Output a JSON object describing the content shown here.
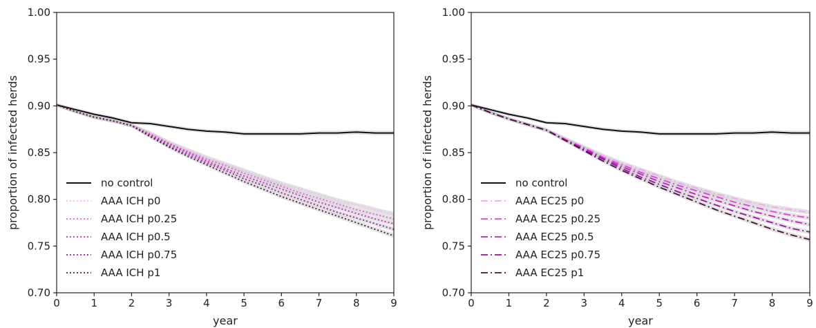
{
  "chart_data": [
    {
      "type": "line",
      "xlabel": "year",
      "ylabel": "proportion of infected herds",
      "xlim": [
        0,
        9
      ],
      "ylim": [
        0.7,
        1.0
      ],
      "xticks": [
        "0",
        "1",
        "2",
        "3",
        "4",
        "5",
        "6",
        "7",
        "8",
        "9"
      ],
      "yticks": [
        "0.70",
        "0.75",
        "0.80",
        "0.85",
        "0.90",
        "0.95",
        "1.00"
      ],
      "legend_position": "lower-left",
      "grid": false,
      "x": [
        0,
        0.5,
        1,
        1.5,
        2,
        2.5,
        3,
        3.5,
        4,
        4.5,
        5,
        5.5,
        6,
        6.5,
        7,
        7.5,
        8,
        8.5,
        9
      ],
      "series": [
        {
          "name": "no control",
          "color": "#111111",
          "dash": "solid",
          "values": [
            0.901,
            0.896,
            0.891,
            0.887,
            0.882,
            0.881,
            0.878,
            0.875,
            0.873,
            0.872,
            0.87,
            0.87,
            0.87,
            0.87,
            0.871,
            0.871,
            0.872,
            0.871,
            0.871
          ]
        },
        {
          "name": "AAA ICH p0",
          "color": "#f4b6f4",
          "dash": "dotted",
          "values": [
            0.901,
            0.894,
            0.888,
            0.884,
            0.879,
            0.871,
            0.861,
            0.853,
            0.845,
            0.838,
            0.831,
            0.824,
            0.817,
            0.811,
            0.805,
            0.799,
            0.794,
            0.789,
            0.784
          ]
        },
        {
          "name": "AAA ICH p0.25",
          "color": "#e857e8",
          "dash": "dotted",
          "values": [
            0.901,
            0.894,
            0.888,
            0.884,
            0.879,
            0.87,
            0.86,
            0.851,
            0.843,
            0.836,
            0.828,
            0.821,
            0.814,
            0.807,
            0.801,
            0.795,
            0.789,
            0.784,
            0.779
          ]
        },
        {
          "name": "AAA ICH p0.5",
          "color": "#cc22cc",
          "dash": "dotted",
          "values": [
            0.901,
            0.894,
            0.888,
            0.884,
            0.879,
            0.869,
            0.859,
            0.85,
            0.841,
            0.833,
            0.825,
            0.818,
            0.811,
            0.804,
            0.797,
            0.791,
            0.785,
            0.779,
            0.774
          ]
        },
        {
          "name": "AAA ICH p0.75",
          "color": "#9a1a9a",
          "dash": "dotted",
          "values": [
            0.901,
            0.894,
            0.888,
            0.884,
            0.879,
            0.868,
            0.857,
            0.848,
            0.839,
            0.831,
            0.822,
            0.815,
            0.807,
            0.8,
            0.793,
            0.786,
            0.78,
            0.774,
            0.768
          ]
        },
        {
          "name": "AAA ICH p1",
          "color": "#4a1840",
          "dash": "dotted",
          "values": [
            0.901,
            0.894,
            0.888,
            0.884,
            0.879,
            0.867,
            0.856,
            0.846,
            0.837,
            0.828,
            0.819,
            0.811,
            0.803,
            0.796,
            0.789,
            0.782,
            0.775,
            0.768,
            0.761
          ]
        }
      ]
    },
    {
      "type": "line",
      "xlabel": "year",
      "ylabel": "proportion of infected herds",
      "xlim": [
        0,
        9
      ],
      "ylim": [
        0.7,
        1.0
      ],
      "xticks": [
        "0",
        "1",
        "2",
        "3",
        "4",
        "5",
        "6",
        "7",
        "8",
        "9"
      ],
      "yticks": [
        "0.70",
        "0.75",
        "0.80",
        "0.85",
        "0.90",
        "0.95",
        "1.00"
      ],
      "legend_position": "lower-left",
      "grid": false,
      "x": [
        0,
        0.5,
        1,
        1.5,
        2,
        2.5,
        3,
        3.5,
        4,
        4.5,
        5,
        5.5,
        6,
        6.5,
        7,
        7.5,
        8,
        8.5,
        9
      ],
      "series": [
        {
          "name": "no control",
          "color": "#111111",
          "dash": "solid",
          "values": [
            0.901,
            0.896,
            0.891,
            0.887,
            0.882,
            0.881,
            0.878,
            0.875,
            0.873,
            0.872,
            0.87,
            0.87,
            0.87,
            0.87,
            0.871,
            0.871,
            0.872,
            0.871,
            0.871
          ]
        },
        {
          "name": "AAA EC25 p0",
          "color": "#f2a6f2",
          "dash": "dashdot",
          "values": [
            0.901,
            0.893,
            0.886,
            0.88,
            0.874,
            0.865,
            0.856,
            0.847,
            0.839,
            0.832,
            0.825,
            0.818,
            0.812,
            0.806,
            0.801,
            0.796,
            0.792,
            0.789,
            0.786
          ]
        },
        {
          "name": "AAA EC25 p0.25",
          "color": "#e040e0",
          "dash": "dashdot",
          "values": [
            0.901,
            0.893,
            0.886,
            0.88,
            0.874,
            0.864,
            0.855,
            0.845,
            0.837,
            0.829,
            0.822,
            0.815,
            0.809,
            0.803,
            0.797,
            0.792,
            0.787,
            0.783,
            0.78
          ]
        },
        {
          "name": "AAA EC25 p0.5",
          "color": "#c020c0",
          "dash": "dashdot",
          "values": [
            0.901,
            0.893,
            0.886,
            0.88,
            0.874,
            0.864,
            0.854,
            0.844,
            0.835,
            0.827,
            0.819,
            0.812,
            0.805,
            0.799,
            0.793,
            0.787,
            0.782,
            0.777,
            0.773
          ]
        },
        {
          "name": "AAA EC25 p0.75",
          "color": "#9412a0",
          "dash": "dashdot",
          "values": [
            0.901,
            0.893,
            0.886,
            0.88,
            0.874,
            0.863,
            0.853,
            0.843,
            0.833,
            0.824,
            0.816,
            0.808,
            0.801,
            0.794,
            0.787,
            0.781,
            0.775,
            0.769,
            0.765
          ]
        },
        {
          "name": "AAA EC25 p1",
          "color": "#4a0f3c",
          "dash": "dashdot",
          "values": [
            0.901,
            0.893,
            0.886,
            0.88,
            0.874,
            0.863,
            0.852,
            0.841,
            0.831,
            0.822,
            0.813,
            0.805,
            0.797,
            0.789,
            0.782,
            0.775,
            0.768,
            0.762,
            0.757
          ]
        }
      ]
    }
  ]
}
